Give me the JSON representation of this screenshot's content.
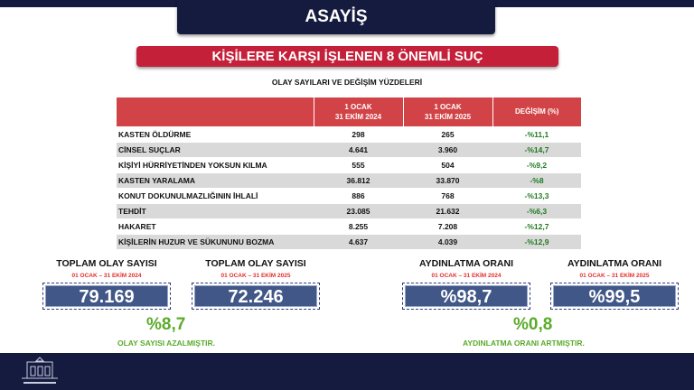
{
  "header": {
    "title": "ASAYİŞ"
  },
  "banner": {
    "title": "KİŞİLERE KARŞI İŞLENEN 8 ÖNEMLİ SUÇ"
  },
  "table": {
    "caption": "OLAY SAYILARI VE DEĞİŞİM YÜZDELERİ",
    "headers": [
      "",
      "1 OCAK\n31 EKİM 2024",
      "1 OCAK\n31 EKİM 2025",
      "DEĞİŞİM (%)"
    ],
    "rows": [
      [
        "KASTEN ÖLDÜRME",
        "298",
        "265",
        "-%11,1"
      ],
      [
        "CİNSEL SUÇLAR",
        "4.641",
        "3.960",
        "-%14,7"
      ],
      [
        "KİŞİYİ HÜRRİYETİNDEN YOKSUN KILMA",
        "555",
        "504",
        "-%9,2"
      ],
      [
        "KASTEN YARALAMA",
        "36.812",
        "33.870",
        "-%8"
      ],
      [
        "KONUT DOKUNULMAZLIĞININ İHLALİ",
        "886",
        "768",
        "-%13,3"
      ],
      [
        "TEHDİT",
        "23.085",
        "21.632",
        "-%6,3"
      ],
      [
        "HAKARET",
        "8.255",
        "7.208",
        "-%12,7"
      ],
      [
        "KİŞİLERİN HUZUR VE SÜKUNUNU BOZMA",
        "4.637",
        "4.039",
        "-%12,9"
      ]
    ]
  },
  "kpis": [
    {
      "title": "TOPLAM OLAY SAYISI",
      "period": "01 OCAK – 31 EKİM 2024",
      "value": "79.169"
    },
    {
      "title": "TOPLAM OLAY SAYISI",
      "period": "01 OCAK – 31 EKİM 2025",
      "value": "72.246"
    },
    {
      "title": "AYDINLATMA ORANI",
      "period": "01 OCAK – 31 EKİM 2024",
      "value": "%98,7"
    },
    {
      "title": "AYDINLATMA ORANI",
      "period": "01 OCAK – 31 EKİM 2025",
      "value": "%99,5"
    }
  ],
  "summary": {
    "incidents_change": "%8,7",
    "incidents_note": "OLAY SAYISI AZALMIŞTIR.",
    "clearance_change": "%0,8",
    "clearance_note": "AYDINLATMA ORANI ARTMIŞTIR."
  },
  "colors": {
    "navy": "#151a3f",
    "red": "#c5203a",
    "header_red": "#d14346",
    "green": "#5aab2a",
    "box": "#415787"
  },
  "footer": {
    "logo": "governorship-building-logo"
  }
}
